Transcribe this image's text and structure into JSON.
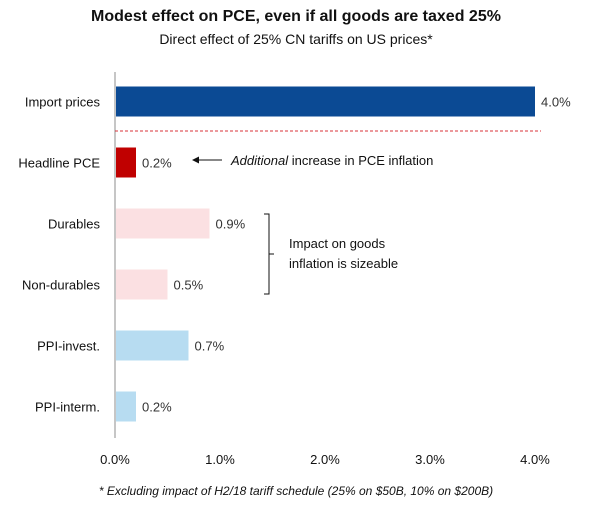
{
  "chart_data": {
    "type": "bar",
    "orientation": "horizontal",
    "title": "Modest effect on PCE, even if all goods are taxed 25%",
    "subtitle": "Direct effect of 25% CN tariffs on US prices*",
    "categories": [
      "Import prices",
      "Headline PCE",
      "Durables",
      "Non-durables",
      "PPI-invest.",
      "PPI-interm."
    ],
    "values": [
      4.0,
      0.2,
      0.9,
      0.5,
      0.7,
      0.2
    ],
    "value_labels": [
      "4.0%",
      "0.2%",
      "0.9%",
      "0.5%",
      "0.7%",
      "0.2%"
    ],
    "bar_colors": [
      "#0b4a94",
      "#c00000",
      "#fbe0e2",
      "#fbe0e2",
      "#b7dcf1",
      "#b7dcf1"
    ],
    "xlim": [
      0,
      4.0
    ],
    "xticks": [
      0,
      1,
      2,
      3,
      4
    ],
    "xtick_labels": [
      "0.0%",
      "1.0%",
      "2.0%",
      "3.0%",
      "4.0%"
    ],
    "grid": false,
    "separator_color": "#d9333a",
    "annotations": {
      "headline": {
        "emphasis": "Additional",
        "rest": " increase in PCE inflation"
      },
      "goods": [
        "Impact on goods",
        "inflation is sizeable"
      ]
    },
    "footnote": "* Excluding impact of H2/18 tariff schedule (25% on $50B, 10% on $200B)"
  }
}
